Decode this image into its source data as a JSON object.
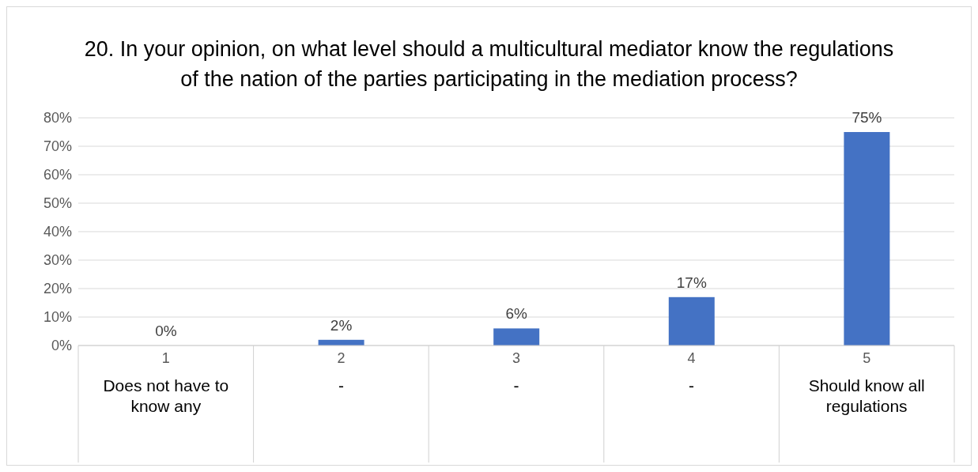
{
  "chart_data": {
    "type": "bar",
    "title": "20. In your opinion, on what level should a multicultural mediator know the regulations of the nation of the parties participating in the mediation process?",
    "categories": [
      "1\nDoes not have to know any",
      "2\n-",
      "3\n-",
      "4\n-",
      "5\nShould know all regulations"
    ],
    "values": [
      0,
      2,
      6,
      17,
      75
    ],
    "color": "#4472c4",
    "value_labels": [
      "0%",
      "2%",
      "6%",
      "17%",
      "75%"
    ],
    "ylim": [
      0,
      80
    ],
    "yticks": [
      {
        "value": 0,
        "label": "0%"
      },
      {
        "value": 10,
        "label": "10%"
      },
      {
        "value": 20,
        "label": "20%"
      },
      {
        "value": 30,
        "label": "30%"
      },
      {
        "value": 40,
        "label": "40%"
      },
      {
        "value": 50,
        "label": "50%"
      },
      {
        "value": 60,
        "label": "60%"
      },
      {
        "value": 70,
        "label": "70%"
      },
      {
        "value": 80,
        "label": "80%"
      }
    ],
    "grid": "y",
    "legend": false
  }
}
